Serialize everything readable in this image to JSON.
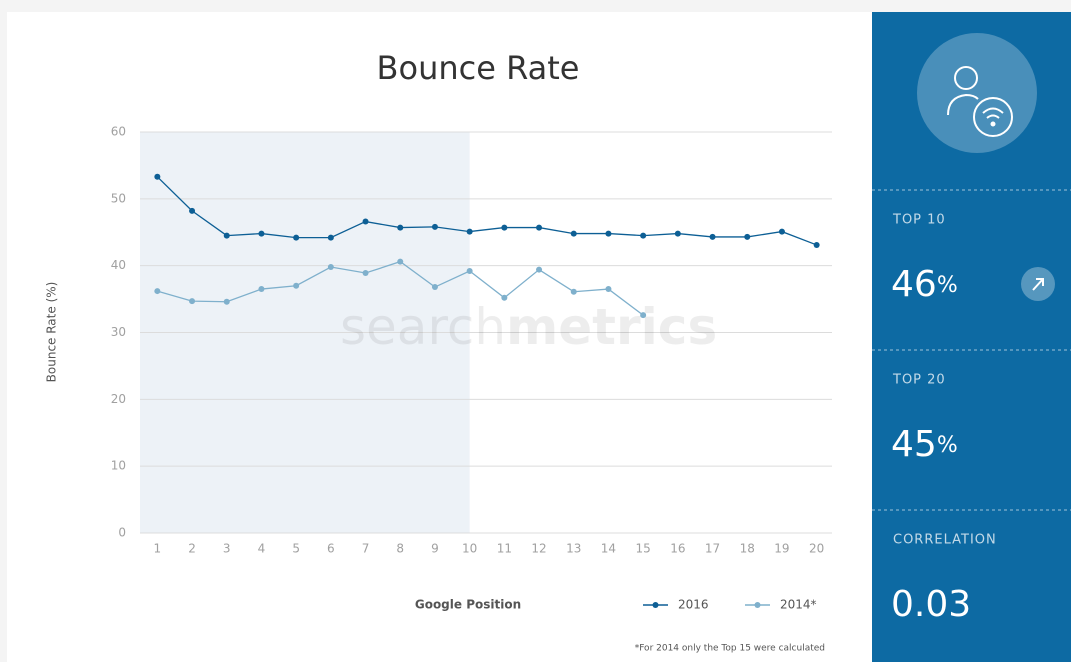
{
  "chart_data": {
    "type": "line",
    "title": "Bounce Rate",
    "x_label": "Google Position",
    "y_label": "Bounce Rate (%)",
    "x": [
      1,
      2,
      3,
      4,
      5,
      6,
      7,
      8,
      9,
      10,
      11,
      12,
      13,
      14,
      15,
      16,
      17,
      18,
      19,
      20
    ],
    "xlim": [
      0.5,
      20.5
    ],
    "xticks": [
      1,
      2,
      3,
      4,
      5,
      6,
      7,
      8,
      9,
      10,
      11,
      12,
      13,
      14,
      15,
      16,
      17,
      18,
      19,
      20
    ],
    "ylim": [
      0,
      60
    ],
    "yticks": [
      0,
      10,
      20,
      30,
      40,
      50,
      60
    ],
    "grid": true,
    "shaded_range": [
      0.5,
      10
    ],
    "watermark": [
      "search",
      "metrics"
    ],
    "legend": "bottom-right",
    "footnote": "*For 2014 only the Top 15 were calculated",
    "series": [
      {
        "name": "2016",
        "color": "#0d5f95",
        "values": [
          53.3,
          48.2,
          44.5,
          44.8,
          44.2,
          44.2,
          46.6,
          45.7,
          45.8,
          45.1,
          45.7,
          45.7,
          44.8,
          44.8,
          44.5,
          44.8,
          44.3,
          44.3,
          45.1,
          43.1
        ]
      },
      {
        "name": "2014*",
        "color": "#7fb0cc",
        "values": [
          36.2,
          34.7,
          34.6,
          36.5,
          37.0,
          39.8,
          38.9,
          40.6,
          36.8,
          39.2,
          35.2,
          39.4,
          36.1,
          36.5,
          32.6,
          null,
          null,
          null,
          null,
          null
        ]
      }
    ]
  },
  "stats": [
    {
      "label": "TOP 10",
      "value": "46",
      "unit": "%"
    },
    {
      "label": "TOP 20",
      "value": "45",
      "unit": "%"
    },
    {
      "label": "CORRELATION",
      "value": "0.03"
    }
  ]
}
